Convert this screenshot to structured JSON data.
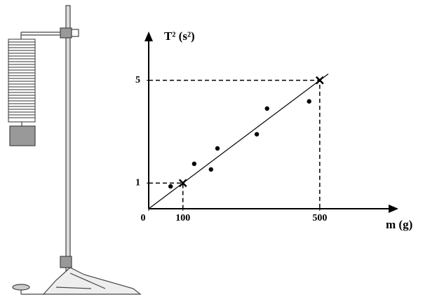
{
  "chart_data": {
    "type": "scatter",
    "x_label": "m (g)",
    "y_label": "T² (s²)",
    "x": [
      64,
      133,
      182,
      201,
      316,
      346,
      469
    ],
    "values": [
      0.87,
      1.75,
      1.53,
      2.35,
      2.9,
      3.9,
      4.18
    ],
    "color": "#000000",
    "fit": {
      "x": [
        0,
        525
      ],
      "y": [
        0,
        5.25
      ]
    },
    "markers": {
      "x": [
        100,
        500
      ],
      "y": [
        1,
        5
      ]
    },
    "xlim": [
      0,
      730
    ],
    "ylim": [
      0,
      6.9
    ],
    "xticks": [
      0,
      100,
      500
    ],
    "yticks": [
      1,
      5
    ]
  }
}
